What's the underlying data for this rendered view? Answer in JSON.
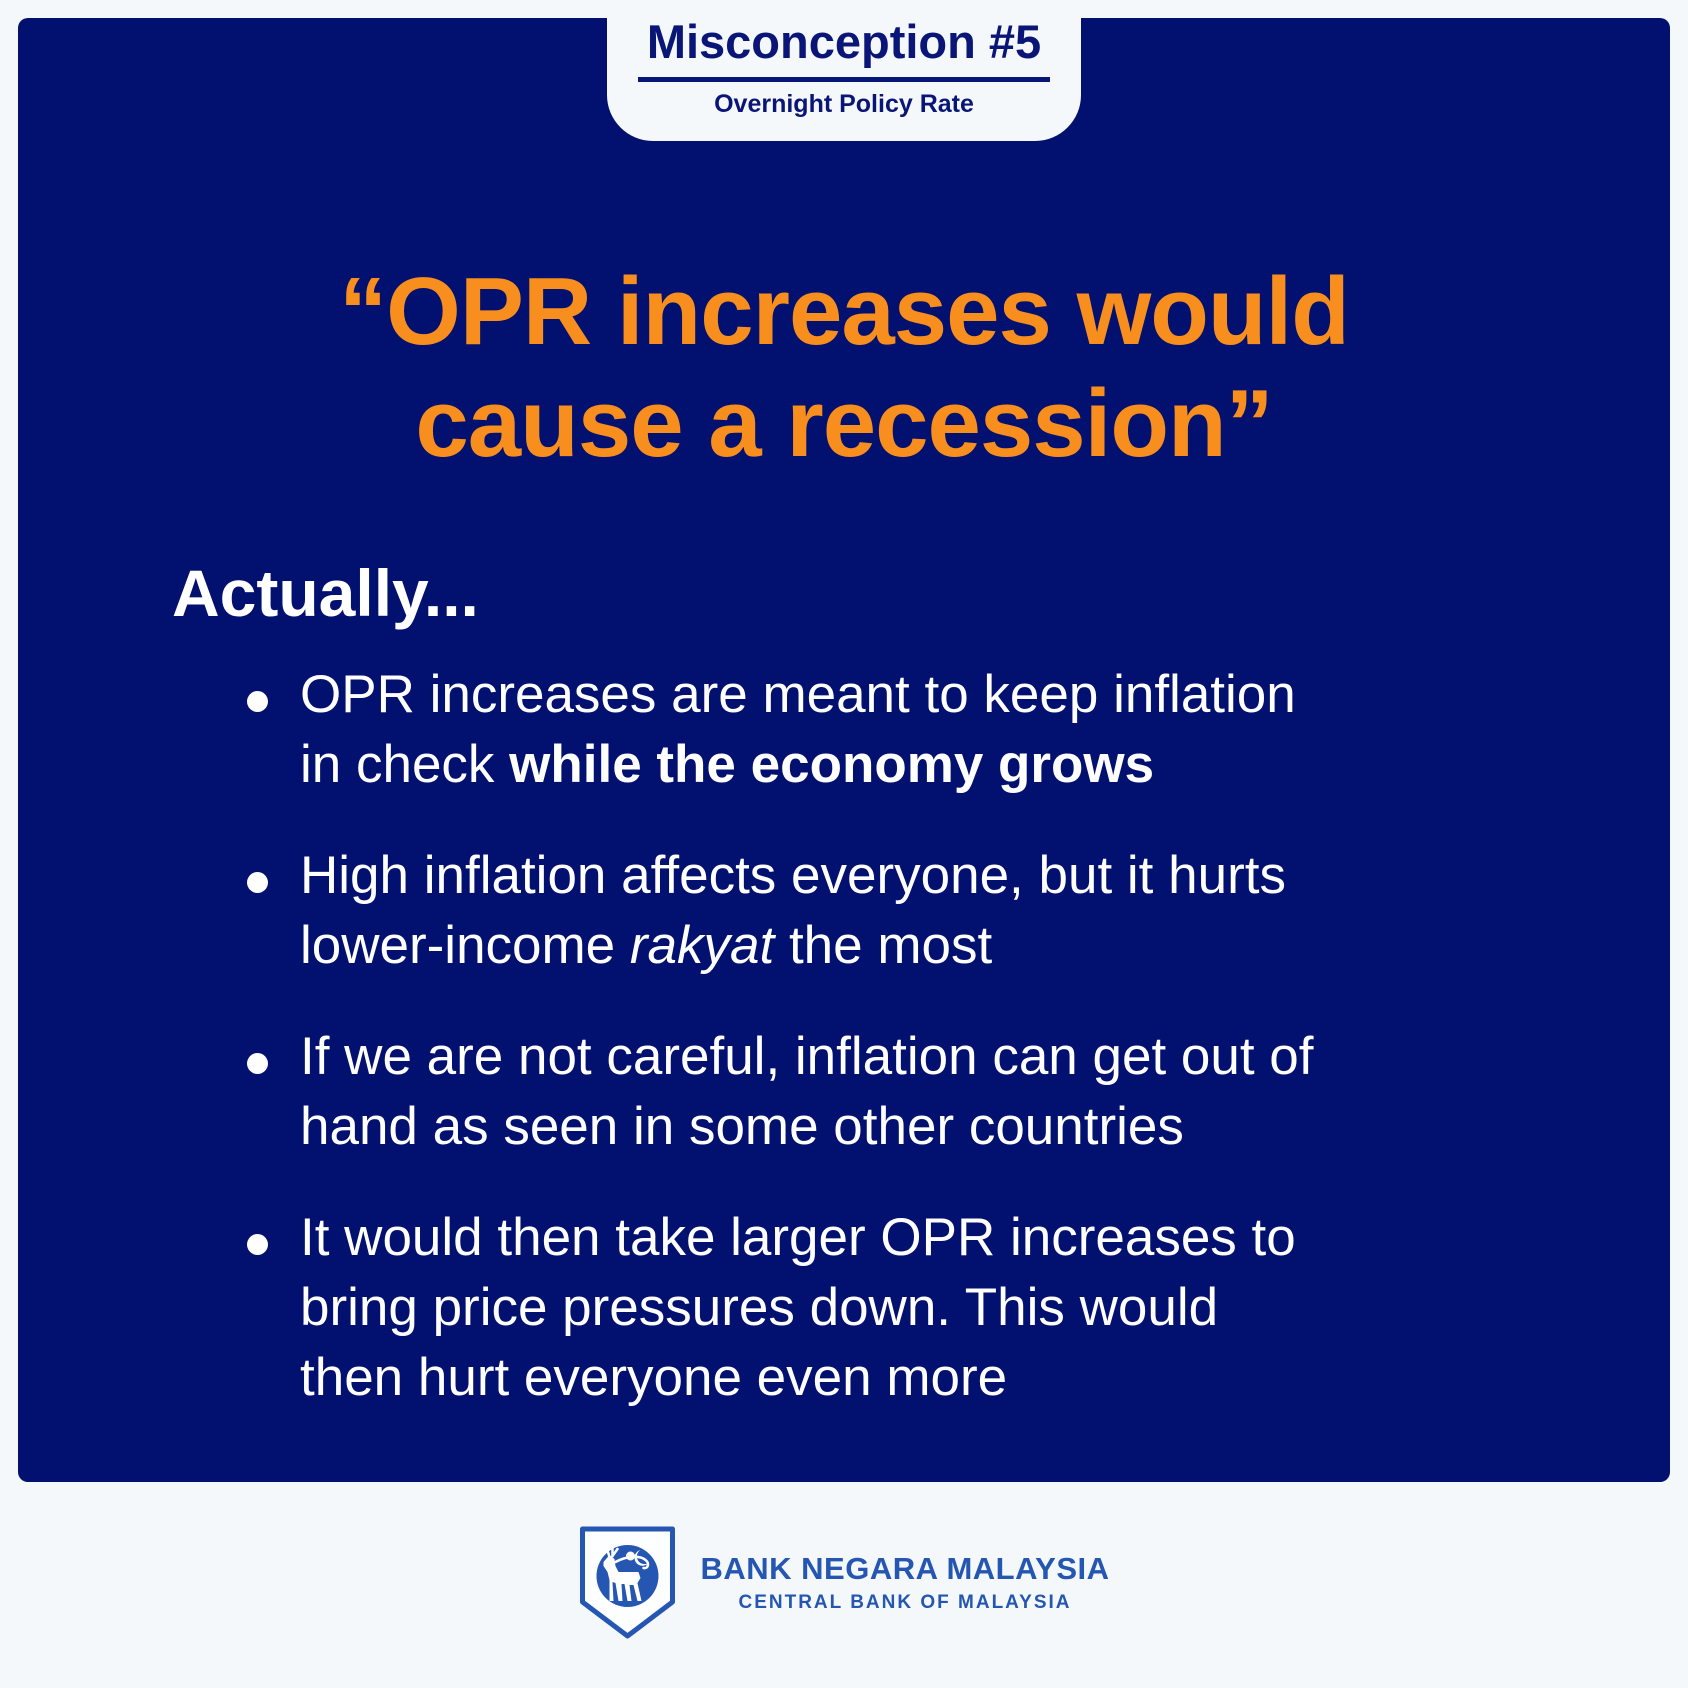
{
  "colors": {
    "background": "#F4F8FB",
    "card_navy": "#021170",
    "headline_orange": "#F78E1D",
    "body_text": "#FFFFFF",
    "logo_blue": "#2456B2"
  },
  "tab": {
    "title": "Misconception #5",
    "subtitle": "Overnight Policy Rate"
  },
  "headline": {
    "text": "“OPR increases would\ncause a recession”"
  },
  "section": {
    "intro": "Actually..."
  },
  "bullets": [
    {
      "segments": [
        {
          "text": "OPR increases are meant to keep inflation\nin check ",
          "style": "normal"
        },
        {
          "text": "while the economy grows",
          "style": "bold"
        }
      ]
    },
    {
      "segments": [
        {
          "text": "High inflation affects everyone, but it hurts\nlower-income ",
          "style": "normal"
        },
        {
          "text": "rakyat",
          "style": "italic"
        },
        {
          "text": " the most",
          "style": "normal"
        }
      ]
    },
    {
      "segments": [
        {
          "text": "If we are not careful, inflation can get out of\nhand as seen in some other countries",
          "style": "normal"
        }
      ]
    },
    {
      "segments": [
        {
          "text": "It would then take larger OPR increases to\nbring price pressures down. This would\nthen hurt everyone even more",
          "style": "normal"
        }
      ]
    }
  ],
  "footer": {
    "logo_icon": "bnm-kijang-shield-icon",
    "name": "BANK NEGARA MALAYSIA",
    "tagline": "CENTRAL BANK OF MALAYSIA"
  }
}
